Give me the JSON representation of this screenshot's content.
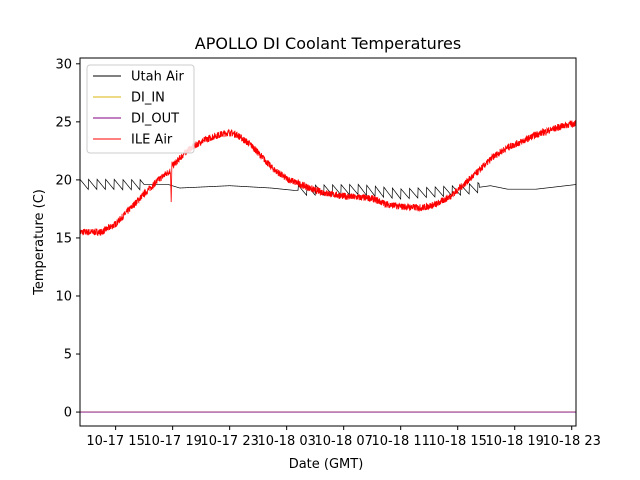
{
  "chart_data": {
    "type": "line",
    "title": "APOLLO DI Coolant Temperatures",
    "xlabel": "Date (GMT)",
    "ylabel": "Temperature (C)",
    "x_unit": "hours since 10-17 11:00 GMT",
    "xlim": [
      1.5,
      36.3
    ],
    "ylim": [
      -1.2,
      30.5
    ],
    "grid": false,
    "legend_position": "top-left",
    "yticks": [
      0,
      5,
      10,
      15,
      20,
      25,
      30
    ],
    "xticks": [
      {
        "value": 4,
        "label": "10-17 15"
      },
      {
        "value": 8,
        "label": "10-17 19"
      },
      {
        "value": 12,
        "label": "10-17 23"
      },
      {
        "value": 16,
        "label": "10-18 03"
      },
      {
        "value": 20,
        "label": "10-18 07"
      },
      {
        "value": 24,
        "label": "10-18 11"
      },
      {
        "value": 28,
        "label": "10-18 15"
      },
      {
        "value": 32,
        "label": "10-18 19"
      },
      {
        "value": 36,
        "label": "10-18 23"
      }
    ],
    "series": [
      {
        "name": "Utah Air",
        "color": "#000000",
        "pattern": "sawtooth",
        "points": [
          [
            1.5,
            19.6
          ],
          [
            7.7,
            19.6
          ],
          [
            8.5,
            19.3
          ],
          [
            12,
            19.5
          ],
          [
            14.9,
            19.3
          ],
          [
            16.5,
            19.1
          ],
          [
            21,
            19.2
          ],
          [
            24,
            18.8
          ],
          [
            28,
            19.1
          ],
          [
            30.3,
            19.5
          ],
          [
            31.5,
            19.2
          ],
          [
            33.5,
            19.2
          ],
          [
            36.3,
            19.6
          ]
        ],
        "sawtooth_segments": [
          [
            1.5,
            6.0
          ],
          [
            16.8,
            29.5
          ]
        ],
        "sawtooth_period": 0.6,
        "sawtooth_amplitude": 0.9
      },
      {
        "name": "DI_IN",
        "color": "#dbb40c",
        "points": [
          [
            1.5,
            0
          ],
          [
            36.3,
            0
          ]
        ]
      },
      {
        "name": "DI_OUT",
        "color": "#800080",
        "points": [
          [
            1.5,
            0
          ],
          [
            36.3,
            0
          ]
        ]
      },
      {
        "name": "ILE Air",
        "color": "#ff0000",
        "noise": 0.3,
        "points": [
          [
            1.5,
            15.5
          ],
          [
            3.0,
            15.5
          ],
          [
            4.0,
            16.2
          ],
          [
            5.0,
            17.5
          ],
          [
            6.0,
            18.8
          ],
          [
            7.0,
            20.0
          ],
          [
            7.5,
            20.5
          ],
          [
            7.85,
            20.8
          ],
          [
            7.9,
            17.8
          ],
          [
            7.95,
            21.5
          ],
          [
            8.0,
            21.2
          ],
          [
            9.0,
            22.5
          ],
          [
            10.0,
            23.3
          ],
          [
            11.0,
            23.8
          ],
          [
            12.0,
            24.1
          ],
          [
            12.5,
            23.9
          ],
          [
            13.5,
            23.0
          ],
          [
            15.0,
            21.0
          ],
          [
            16.0,
            20.1
          ],
          [
            17.0,
            19.6
          ],
          [
            18.0,
            19.1
          ],
          [
            19.0,
            18.8
          ],
          [
            20.0,
            18.6
          ],
          [
            22.0,
            18.4
          ],
          [
            23.0,
            17.9
          ],
          [
            24.0,
            17.7
          ],
          [
            25.5,
            17.6
          ],
          [
            26.5,
            17.9
          ],
          [
            27.5,
            18.6
          ],
          [
            28.6,
            19.8
          ],
          [
            29.5,
            20.8
          ],
          [
            30.5,
            22.0
          ],
          [
            31.5,
            22.8
          ],
          [
            32.5,
            23.3
          ],
          [
            33.5,
            23.9
          ],
          [
            34.5,
            24.3
          ],
          [
            35.5,
            24.7
          ],
          [
            36.3,
            24.9
          ]
        ]
      }
    ]
  }
}
